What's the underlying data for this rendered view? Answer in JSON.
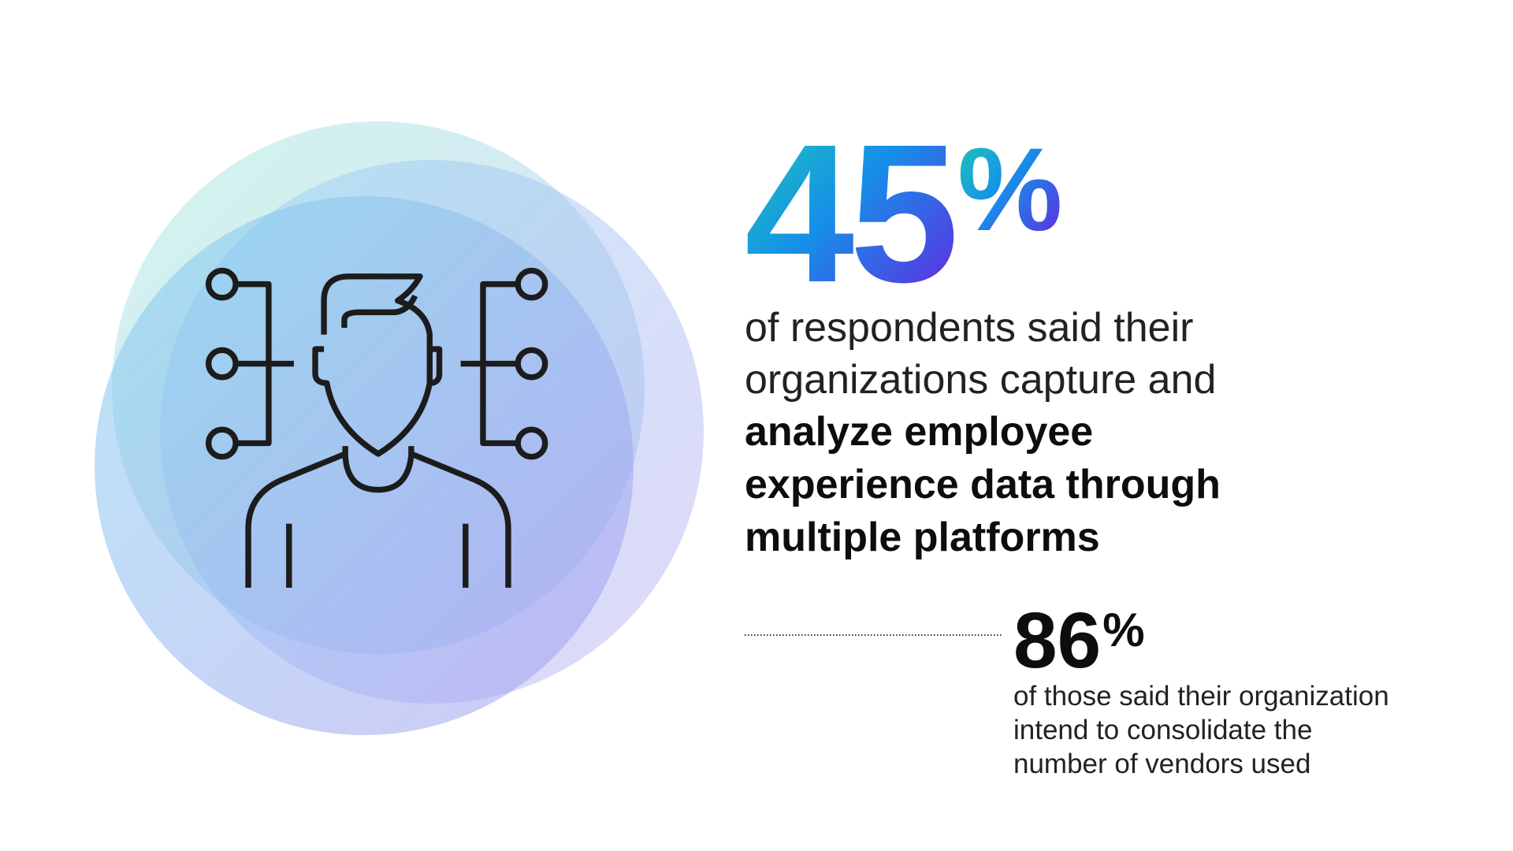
{
  "headline": {
    "number": "45",
    "symbol": "%"
  },
  "description": {
    "regular_lines": [
      "of respondents said their",
      "organizations capture and"
    ],
    "bold_lines": [
      "analyze employee",
      "experience data through",
      "multiple platforms"
    ]
  },
  "secondary": {
    "number": "86",
    "symbol": "%",
    "lines": [
      "of those said their organization",
      "intend to consolidate the",
      "number of vendors used"
    ]
  }
}
